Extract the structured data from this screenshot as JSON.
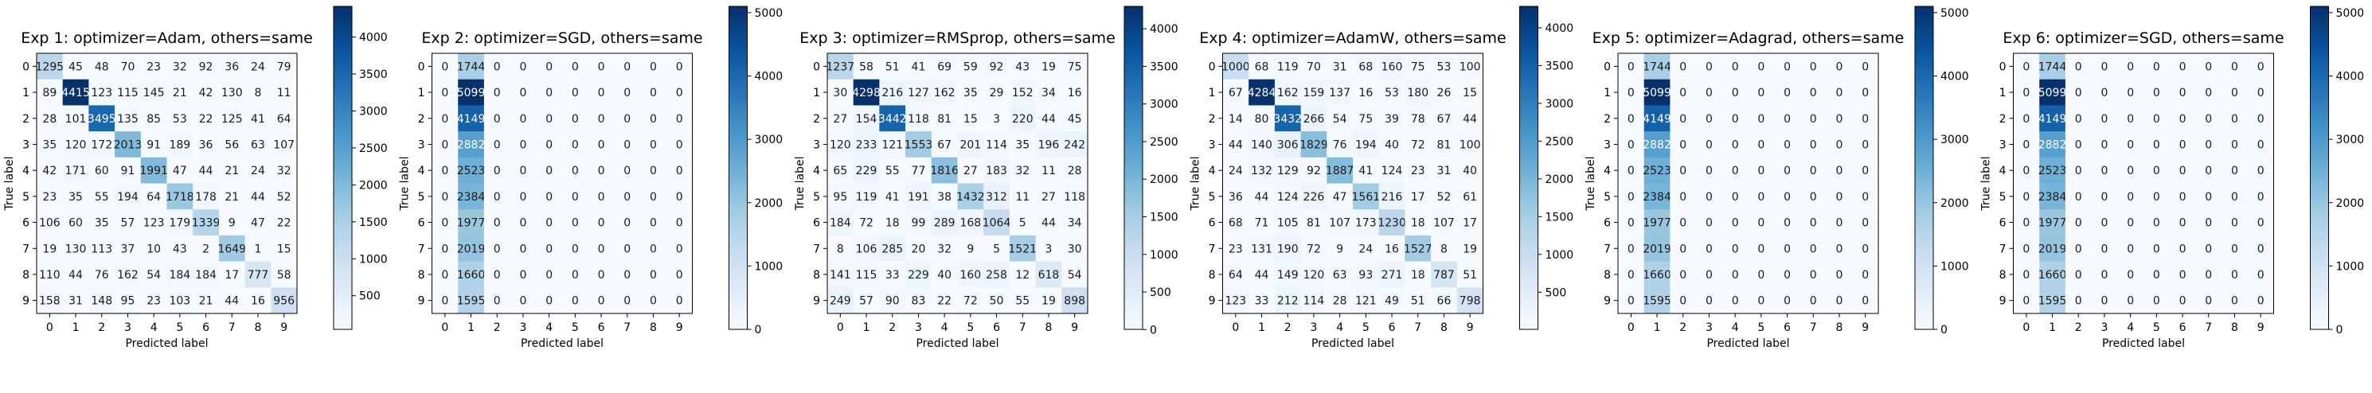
{
  "chart_data": [
    {
      "type": "heatmap",
      "title": "Exp 1: optimizer=Adam, others=same",
      "xlabel": "Predicted label",
      "ylabel": "True label",
      "categories": [
        "0",
        "1",
        "2",
        "3",
        "4",
        "5",
        "6",
        "7",
        "8",
        "9"
      ],
      "colormap": "Blues",
      "colorbar": {
        "range": [
          45,
          4415
        ],
        "ticks": [
          "500",
          "1000",
          "1500",
          "2000",
          "2500",
          "3000",
          "3500",
          "4000"
        ]
      },
      "values": [
        [
          1295,
          45,
          48,
          70,
          23,
          32,
          92,
          36,
          24,
          79
        ],
        [
          89,
          4415,
          123,
          115,
          145,
          21,
          42,
          130,
          8,
          11
        ],
        [
          28,
          101,
          3495,
          135,
          85,
          53,
          22,
          125,
          41,
          64
        ],
        [
          35,
          120,
          172,
          2013,
          91,
          189,
          36,
          56,
          63,
          107
        ],
        [
          42,
          171,
          60,
          91,
          1991,
          47,
          44,
          21,
          24,
          32
        ],
        [
          23,
          35,
          55,
          194,
          64,
          1718,
          178,
          21,
          44,
          52
        ],
        [
          106,
          60,
          35,
          57,
          123,
          179,
          1339,
          9,
          47,
          22
        ],
        [
          19,
          130,
          113,
          37,
          10,
          43,
          2,
          1649,
          1,
          15
        ],
        [
          110,
          44,
          76,
          162,
          54,
          184,
          184,
          17,
          777,
          58
        ],
        [
          158,
          31,
          148,
          95,
          23,
          103,
          21,
          44,
          16,
          956
        ]
      ]
    },
    {
      "type": "heatmap",
      "title": "Exp 2: optimizer=SGD, others=same",
      "xlabel": "Predicted label",
      "ylabel": "True label",
      "categories": [
        "0",
        "1",
        "2",
        "3",
        "4",
        "5",
        "6",
        "7",
        "8",
        "9"
      ],
      "colormap": "Blues",
      "colorbar": {
        "range": [
          0,
          5099
        ],
        "ticks": [
          "0",
          "1000",
          "2000",
          "3000",
          "4000",
          "5000"
        ]
      },
      "values": [
        [
          0,
          1744,
          0,
          0,
          0,
          0,
          0,
          0,
          0,
          0
        ],
        [
          0,
          5099,
          0,
          0,
          0,
          0,
          0,
          0,
          0,
          0
        ],
        [
          0,
          4149,
          0,
          0,
          0,
          0,
          0,
          0,
          0,
          0
        ],
        [
          0,
          2882,
          0,
          0,
          0,
          0,
          0,
          0,
          0,
          0
        ],
        [
          0,
          2523,
          0,
          0,
          0,
          0,
          0,
          0,
          0,
          0
        ],
        [
          0,
          2384,
          0,
          0,
          0,
          0,
          0,
          0,
          0,
          0
        ],
        [
          0,
          1977,
          0,
          0,
          0,
          0,
          0,
          0,
          0,
          0
        ],
        [
          0,
          2019,
          0,
          0,
          0,
          0,
          0,
          0,
          0,
          0
        ],
        [
          0,
          1660,
          0,
          0,
          0,
          0,
          0,
          0,
          0,
          0
        ],
        [
          0,
          1595,
          0,
          0,
          0,
          0,
          0,
          0,
          0,
          0
        ]
      ]
    },
    {
      "type": "heatmap",
      "title": "Exp 3: optimizer=RMSprop, others=same",
      "xlabel": "Predicted label",
      "ylabel": "True label",
      "categories": [
        "0",
        "1",
        "2",
        "3",
        "4",
        "5",
        "6",
        "7",
        "8",
        "9"
      ],
      "colormap": "Blues",
      "colorbar": {
        "range": [
          3,
          4298
        ],
        "ticks": [
          "0",
          "500",
          "1000",
          "1500",
          "2000",
          "2500",
          "3000",
          "3500",
          "4000"
        ]
      },
      "values": [
        [
          1237,
          58,
          51,
          41,
          69,
          59,
          92,
          43,
          19,
          75
        ],
        [
          30,
          4298,
          216,
          127,
          162,
          35,
          29,
          152,
          34,
          16
        ],
        [
          27,
          154,
          3442,
          118,
          81,
          15,
          3,
          220,
          44,
          45
        ],
        [
          120,
          233,
          121,
          1553,
          67,
          201,
          114,
          35,
          196,
          242
        ],
        [
          65,
          229,
          55,
          77,
          1816,
          27,
          183,
          32,
          11,
          28
        ],
        [
          95,
          119,
          41,
          191,
          38,
          1432,
          312,
          11,
          27,
          118
        ],
        [
          184,
          72,
          18,
          99,
          289,
          168,
          1064,
          5,
          44,
          34
        ],
        [
          8,
          106,
          285,
          20,
          32,
          9,
          5,
          1521,
          3,
          30
        ],
        [
          141,
          115,
          33,
          229,
          40,
          160,
          258,
          12,
          618,
          54
        ],
        [
          249,
          57,
          90,
          83,
          22,
          72,
          50,
          55,
          19,
          898
        ]
      ]
    },
    {
      "type": "heatmap",
      "title": "Exp 4: optimizer=AdamW, others=same",
      "xlabel": "Predicted label",
      "ylabel": "True label",
      "categories": [
        "0",
        "1",
        "2",
        "3",
        "4",
        "5",
        "6",
        "7",
        "8",
        "9"
      ],
      "colormap": "Blues",
      "colorbar": {
        "range": [
          8,
          4284
        ],
        "ticks": [
          "500",
          "1000",
          "1500",
          "2000",
          "2500",
          "3000",
          "3500",
          "4000"
        ]
      },
      "values": [
        [
          1000,
          68,
          119,
          70,
          31,
          68,
          160,
          75,
          53,
          100
        ],
        [
          67,
          4284,
          162,
          159,
          137,
          16,
          53,
          180,
          26,
          15
        ],
        [
          14,
          80,
          3432,
          266,
          54,
          75,
          39,
          78,
          67,
          44
        ],
        [
          44,
          140,
          306,
          1829,
          76,
          194,
          40,
          72,
          81,
          100
        ],
        [
          24,
          132,
          129,
          92,
          1887,
          41,
          124,
          23,
          31,
          40
        ],
        [
          36,
          44,
          124,
          226,
          47,
          1561,
          216,
          17,
          52,
          61
        ],
        [
          68,
          71,
          105,
          81,
          107,
          173,
          1230,
          18,
          107,
          17
        ],
        [
          23,
          131,
          190,
          72,
          9,
          24,
          16,
          1527,
          8,
          19
        ],
        [
          64,
          44,
          149,
          120,
          63,
          93,
          271,
          18,
          787,
          51
        ],
        [
          123,
          33,
          212,
          114,
          28,
          121,
          49,
          51,
          66,
          798
        ]
      ]
    },
    {
      "type": "heatmap",
      "title": "Exp 5: optimizer=Adagrad, others=same",
      "xlabel": "Predicted label",
      "ylabel": "True label",
      "categories": [
        "0",
        "1",
        "2",
        "3",
        "4",
        "5",
        "6",
        "7",
        "8",
        "9"
      ],
      "colormap": "Blues",
      "colorbar": {
        "range": [
          0,
          5099
        ],
        "ticks": [
          "0",
          "1000",
          "2000",
          "3000",
          "4000",
          "5000"
        ]
      },
      "values": [
        [
          0,
          1744,
          0,
          0,
          0,
          0,
          0,
          0,
          0,
          0
        ],
        [
          0,
          5099,
          0,
          0,
          0,
          0,
          0,
          0,
          0,
          0
        ],
        [
          0,
          4149,
          0,
          0,
          0,
          0,
          0,
          0,
          0,
          0
        ],
        [
          0,
          2882,
          0,
          0,
          0,
          0,
          0,
          0,
          0,
          0
        ],
        [
          0,
          2523,
          0,
          0,
          0,
          0,
          0,
          0,
          0,
          0
        ],
        [
          0,
          2384,
          0,
          0,
          0,
          0,
          0,
          0,
          0,
          0
        ],
        [
          0,
          1977,
          0,
          0,
          0,
          0,
          0,
          0,
          0,
          0
        ],
        [
          0,
          2019,
          0,
          0,
          0,
          0,
          0,
          0,
          0,
          0
        ],
        [
          0,
          1660,
          0,
          0,
          0,
          0,
          0,
          0,
          0,
          0
        ],
        [
          0,
          1595,
          0,
          0,
          0,
          0,
          0,
          0,
          0,
          0
        ]
      ]
    },
    {
      "type": "heatmap",
      "title": "Exp 6: optimizer=SGD, others=same",
      "xlabel": "Predicted label",
      "ylabel": "True label",
      "categories": [
        "0",
        "1",
        "2",
        "3",
        "4",
        "5",
        "6",
        "7",
        "8",
        "9"
      ],
      "colormap": "Blues",
      "colorbar": {
        "range": [
          0,
          5099
        ],
        "ticks": [
          "0",
          "1000",
          "2000",
          "3000",
          "4000",
          "5000"
        ]
      },
      "values": [
        [
          0,
          1744,
          0,
          0,
          0,
          0,
          0,
          0,
          0,
          0
        ],
        [
          0,
          5099,
          0,
          0,
          0,
          0,
          0,
          0,
          0,
          0
        ],
        [
          0,
          4149,
          0,
          0,
          0,
          0,
          0,
          0,
          0,
          0
        ],
        [
          0,
          2882,
          0,
          0,
          0,
          0,
          0,
          0,
          0,
          0
        ],
        [
          0,
          2523,
          0,
          0,
          0,
          0,
          0,
          0,
          0,
          0
        ],
        [
          0,
          2384,
          0,
          0,
          0,
          0,
          0,
          0,
          0,
          0
        ],
        [
          0,
          1977,
          0,
          0,
          0,
          0,
          0,
          0,
          0,
          0
        ],
        [
          0,
          2019,
          0,
          0,
          0,
          0,
          0,
          0,
          0,
          0
        ],
        [
          0,
          1660,
          0,
          0,
          0,
          0,
          0,
          0,
          0,
          0
        ],
        [
          0,
          1595,
          0,
          0,
          0,
          0,
          0,
          0,
          0,
          0
        ]
      ]
    }
  ]
}
